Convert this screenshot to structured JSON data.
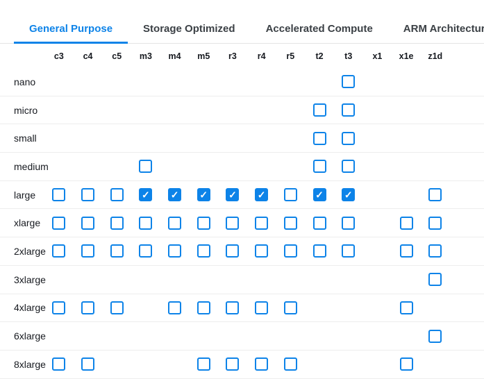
{
  "tabs": [
    {
      "label": "General Purpose",
      "active": true
    },
    {
      "label": "Storage Optimized",
      "active": false
    },
    {
      "label": "Accelerated Compute",
      "active": false
    },
    {
      "label": "ARM Architecture",
      "active": false
    }
  ],
  "grid": {
    "columns": [
      "c3",
      "c4",
      "c5",
      "m3",
      "m4",
      "m5",
      "r3",
      "r4",
      "r5",
      "t2",
      "t3",
      "x1",
      "x1e",
      "z1d"
    ],
    "rows": [
      {
        "label": "nano",
        "cells": [
          null,
          null,
          null,
          null,
          null,
          null,
          null,
          null,
          null,
          null,
          "unchecked",
          null,
          null,
          null
        ]
      },
      {
        "label": "micro",
        "cells": [
          null,
          null,
          null,
          null,
          null,
          null,
          null,
          null,
          null,
          "unchecked",
          "unchecked",
          null,
          null,
          null
        ]
      },
      {
        "label": "small",
        "cells": [
          null,
          null,
          null,
          null,
          null,
          null,
          null,
          null,
          null,
          "unchecked",
          "unchecked",
          null,
          null,
          null
        ]
      },
      {
        "label": "medium",
        "cells": [
          null,
          null,
          null,
          "unchecked",
          null,
          null,
          null,
          null,
          null,
          "unchecked",
          "unchecked",
          null,
          null,
          null
        ]
      },
      {
        "label": "large",
        "cells": [
          "unchecked",
          "unchecked",
          "unchecked",
          "checked",
          "checked",
          "checked",
          "checked",
          "checked",
          "unchecked",
          "checked",
          "checked",
          null,
          null,
          "unchecked"
        ]
      },
      {
        "label": "xlarge",
        "cells": [
          "unchecked",
          "unchecked",
          "unchecked",
          "unchecked",
          "unchecked",
          "unchecked",
          "unchecked",
          "unchecked",
          "unchecked",
          "unchecked",
          "unchecked",
          null,
          "unchecked",
          "unchecked"
        ]
      },
      {
        "label": "2xlarge",
        "cells": [
          "unchecked",
          "unchecked",
          "unchecked",
          "unchecked",
          "unchecked",
          "unchecked",
          "unchecked",
          "unchecked",
          "unchecked",
          "unchecked",
          "unchecked",
          null,
          "unchecked",
          "unchecked"
        ]
      },
      {
        "label": "3xlarge",
        "cells": [
          null,
          null,
          null,
          null,
          null,
          null,
          null,
          null,
          null,
          null,
          null,
          null,
          null,
          "unchecked"
        ]
      },
      {
        "label": "4xlarge",
        "cells": [
          "unchecked",
          "unchecked",
          "unchecked",
          null,
          "unchecked",
          "unchecked",
          "unchecked",
          "unchecked",
          "unchecked",
          null,
          null,
          null,
          "unchecked",
          null
        ]
      },
      {
        "label": "6xlarge",
        "cells": [
          null,
          null,
          null,
          null,
          null,
          null,
          null,
          null,
          null,
          null,
          null,
          null,
          null,
          "unchecked"
        ]
      },
      {
        "label": "8xlarge",
        "cells": [
          "unchecked",
          "unchecked",
          null,
          null,
          null,
          "unchecked",
          "unchecked",
          "unchecked",
          "unchecked",
          null,
          null,
          null,
          "unchecked",
          null
        ]
      }
    ]
  },
  "icons": {
    "checkmark": "✓"
  },
  "colors": {
    "accent": "#0d83e8",
    "checkbox_checked_fill": "#0d83e8",
    "checkbox_border": "#0d83e8",
    "row_divider": "#ededed",
    "tab_divider": "#e4e4e4",
    "text_dark": "#16191f",
    "tab_inactive_text": "#3b4045"
  }
}
